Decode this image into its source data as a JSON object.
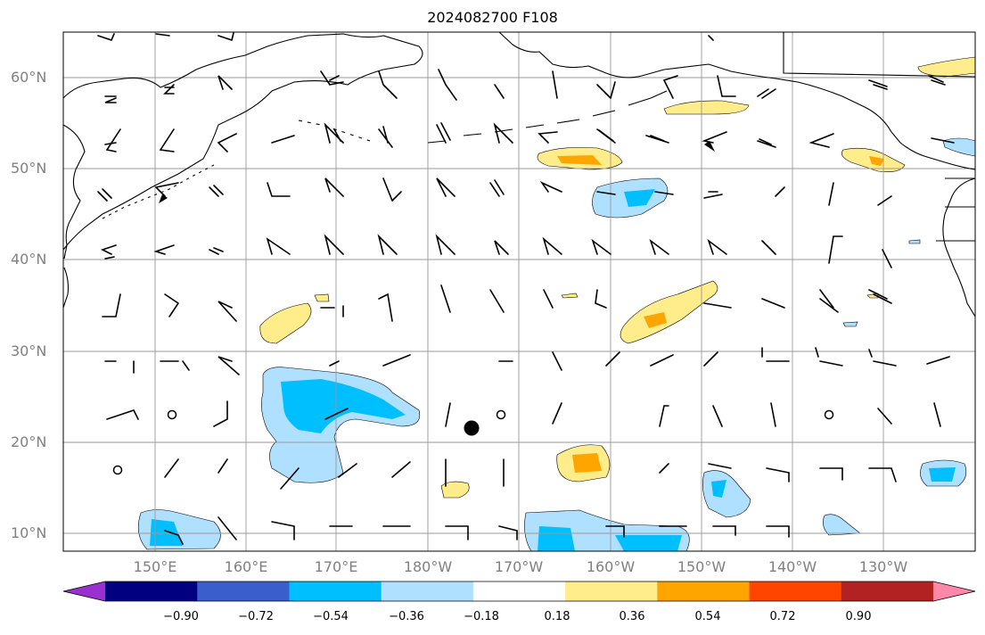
{
  "title": "2024082700 F108",
  "lat_labels": [
    "60°N",
    "50°N",
    "40°N",
    "30°N",
    "20°N",
    "10°N"
  ],
  "lon_labels": [
    "150°E",
    "160°E",
    "170°E",
    "180°W",
    "170°W",
    "160°W",
    "150°W",
    "140°W",
    "130°W"
  ],
  "colorbar": {
    "colors": [
      "#9a30d0",
      "#000080",
      "#3a5fcd",
      "#00bfff",
      "#b0e0ff",
      "#ffffff",
      "#ffec8b",
      "#ffa500",
      "#ff4500",
      "#b22222",
      "#ff88aa"
    ],
    "tick_labels": [
      "−0.90",
      "−0.72",
      "−0.54",
      "−0.36",
      "−0.18",
      "0.18",
      "0.36",
      "0.54",
      "0.72",
      "0.90"
    ]
  },
  "map": {
    "lon_range": [
      140,
      240
    ],
    "lat_range": [
      8,
      65
    ],
    "grid_step": 10
  }
}
